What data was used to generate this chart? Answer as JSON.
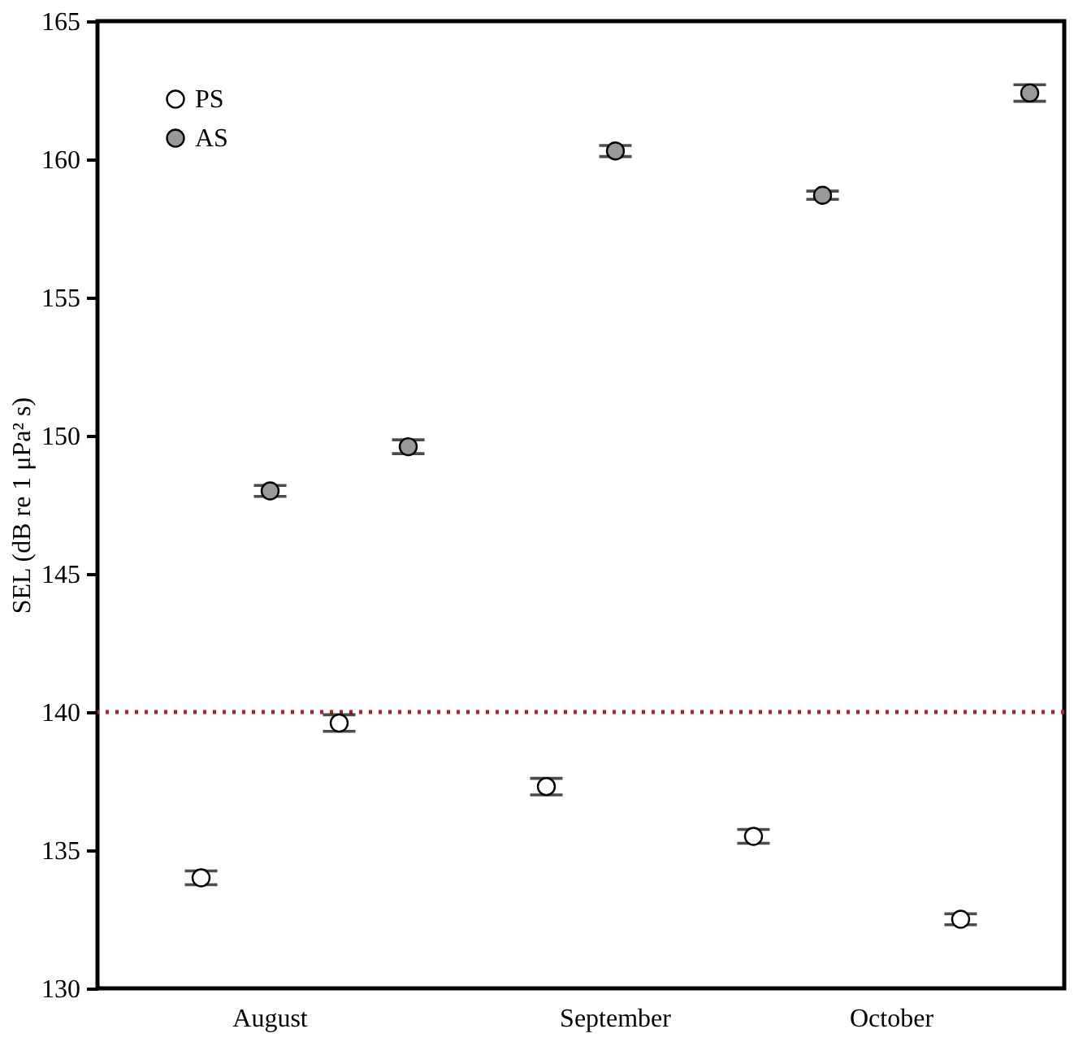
{
  "chart_data": {
    "type": "scatter",
    "ylabel": "SEL (dB re 1 μPa² s)",
    "categories": [
      null,
      null,
      "August",
      null,
      null,
      null,
      null,
      "September",
      null,
      null,
      null,
      "October",
      null,
      null
    ],
    "ylim": [
      130,
      165
    ],
    "yticks": [
      130,
      135,
      140,
      145,
      150,
      155,
      160,
      165
    ],
    "series": [
      {
        "name": "PS",
        "color": "#ffffff",
        "values": [
          null,
          134.0,
          null,
          139.6,
          null,
          null,
          137.3,
          null,
          null,
          135.5,
          null,
          null,
          132.5,
          null
        ],
        "errors": [
          null,
          0.25,
          null,
          0.3,
          null,
          null,
          0.3,
          null,
          null,
          0.25,
          null,
          null,
          0.2,
          null
        ]
      },
      {
        "name": "AS",
        "color": "#999999",
        "values": [
          null,
          null,
          148.0,
          null,
          149.6,
          null,
          null,
          160.3,
          null,
          null,
          158.7,
          null,
          null,
          162.4
        ],
        "errors": [
          null,
          null,
          0.2,
          null,
          0.25,
          null,
          null,
          0.2,
          null,
          null,
          0.15,
          null,
          null,
          0.3
        ]
      }
    ],
    "ref_lines": [
      {
        "axis": "y",
        "value": 140,
        "color": "#b22222",
        "line_style": "dotted"
      }
    ],
    "marker": "circle",
    "legend": "top left",
    "grid": false
  }
}
